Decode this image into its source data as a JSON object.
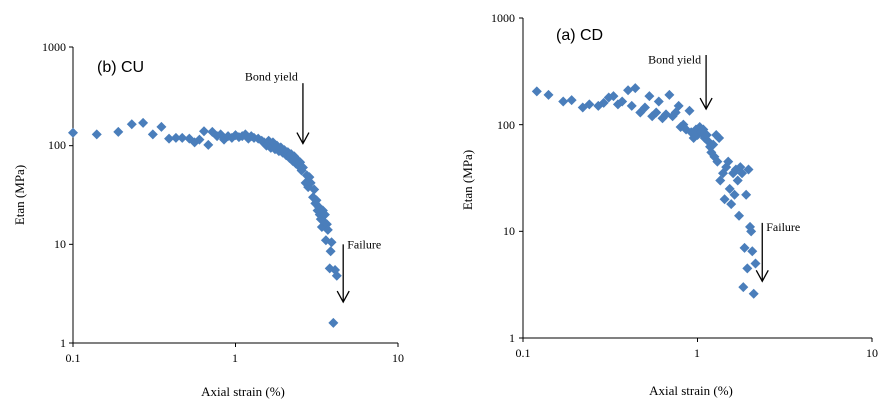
{
  "chart_data": [
    {
      "type": "scatter",
      "panel_label": "(b) CU",
      "xlabel": "Axial strain (%)",
      "ylabel": "Etan (MPa)",
      "x_scale": "log",
      "y_scale": "log",
      "xlim": [
        0.1,
        10
      ],
      "ylim": [
        1,
        1000
      ],
      "x_ticks": [
        "0.1",
        "1",
        "10"
      ],
      "y_ticks": [
        "1",
        "10",
        "100",
        "1000"
      ],
      "marker": "diamond",
      "color": "#4a7ebb",
      "annotations": [
        {
          "text": "Bond yield",
          "x": 2.6,
          "y_text": 500,
          "arrow_from": 430,
          "arrow_to": 105
        },
        {
          "text": "Failure",
          "x": 4.6,
          "y_text": 10,
          "arrow_from": 10,
          "arrow_to": 2.6
        }
      ],
      "points": [
        [
          0.1,
          135
        ],
        [
          0.14,
          130
        ],
        [
          0.19,
          138
        ],
        [
          0.23,
          165
        ],
        [
          0.27,
          170
        ],
        [
          0.31,
          130
        ],
        [
          0.35,
          155
        ],
        [
          0.39,
          118
        ],
        [
          0.43,
          120
        ],
        [
          0.47,
          120
        ],
        [
          0.52,
          118
        ],
        [
          0.56,
          108
        ],
        [
          0.6,
          115
        ],
        [
          0.64,
          140
        ],
        [
          0.68,
          102
        ],
        [
          0.72,
          138
        ],
        [
          0.77,
          125
        ],
        [
          0.81,
          130
        ],
        [
          0.85,
          115
        ],
        [
          0.9,
          125
        ],
        [
          0.95,
          120
        ],
        [
          1.0,
          128
        ],
        [
          1.05,
          122
        ],
        [
          1.1,
          125
        ],
        [
          1.15,
          130
        ],
        [
          1.2,
          118
        ],
        [
          1.25,
          125
        ],
        [
          1.3,
          120
        ],
        [
          1.38,
          118
        ],
        [
          1.45,
          112
        ],
        [
          1.5,
          108
        ],
        [
          1.55,
          100
        ],
        [
          1.6,
          112
        ],
        [
          1.65,
          95
        ],
        [
          1.7,
          108
        ],
        [
          1.75,
          92
        ],
        [
          1.8,
          100
        ],
        [
          1.85,
          88
        ],
        [
          1.9,
          96
        ],
        [
          1.95,
          85
        ],
        [
          2.0,
          90
        ],
        [
          2.05,
          80
        ],
        [
          2.1,
          86
        ],
        [
          2.15,
          75
        ],
        [
          2.2,
          82
        ],
        [
          2.25,
          70
        ],
        [
          2.3,
          78
        ],
        [
          2.35,
          66
        ],
        [
          2.4,
          72
        ],
        [
          2.45,
          62
        ],
        [
          2.5,
          68
        ],
        [
          2.55,
          56
        ],
        [
          2.6,
          60
        ],
        [
          2.7,
          42
        ],
        [
          2.75,
          50
        ],
        [
          2.8,
          38
        ],
        [
          2.85,
          48
        ],
        [
          2.9,
          42
        ],
        [
          3.0,
          30
        ],
        [
          3.05,
          36
        ],
        [
          3.1,
          26
        ],
        [
          3.15,
          28
        ],
        [
          3.2,
          22
        ],
        [
          3.25,
          24
        ],
        [
          3.3,
          20
        ],
        [
          3.35,
          18
        ],
        [
          3.4,
          15
        ],
        [
          3.45,
          22
        ],
        [
          3.5,
          17
        ],
        [
          3.55,
          20
        ],
        [
          3.6,
          11
        ],
        [
          3.65,
          16
        ],
        [
          3.7,
          14
        ],
        [
          3.8,
          5.7
        ],
        [
          3.85,
          8.5
        ],
        [
          3.9,
          10.5
        ],
        [
          4.0,
          1.6
        ],
        [
          4.1,
          5.5
        ],
        [
          4.2,
          4.8
        ]
      ]
    },
    {
      "type": "scatter",
      "panel_label": "(a) CD",
      "xlabel": "Axial strain (%)",
      "ylabel": "Etan (MPa)",
      "x_scale": "log",
      "y_scale": "log",
      "xlim": [
        0.1,
        10
      ],
      "ylim": [
        1,
        1000
      ],
      "x_ticks": [
        "0.1",
        "1",
        "10"
      ],
      "y_ticks": [
        "1",
        "10",
        "100",
        "1000"
      ],
      "marker": "diamond",
      "color": "#4a7ebb",
      "annotations": [
        {
          "text": "Bond yield",
          "x": 1.12,
          "y_text": 410,
          "arrow_from": 450,
          "arrow_to": 140
        },
        {
          "text": "Failure",
          "x": 2.35,
          "y_text": 11,
          "arrow_from": 12,
          "arrow_to": 3.4
        }
      ],
      "points": [
        [
          0.12,
          205
        ],
        [
          0.14,
          190
        ],
        [
          0.17,
          165
        ],
        [
          0.19,
          170
        ],
        [
          0.22,
          145
        ],
        [
          0.24,
          155
        ],
        [
          0.27,
          150
        ],
        [
          0.29,
          160
        ],
        [
          0.31,
          180
        ],
        [
          0.33,
          185
        ],
        [
          0.35,
          155
        ],
        [
          0.37,
          165
        ],
        [
          0.4,
          210
        ],
        [
          0.42,
          150
        ],
        [
          0.44,
          220
        ],
        [
          0.47,
          130
        ],
        [
          0.5,
          145
        ],
        [
          0.53,
          185
        ],
        [
          0.55,
          120
        ],
        [
          0.58,
          130
        ],
        [
          0.6,
          165
        ],
        [
          0.63,
          115
        ],
        [
          0.66,
          125
        ],
        [
          0.69,
          190
        ],
        [
          0.72,
          120
        ],
        [
          0.75,
          130
        ],
        [
          0.78,
          150
        ],
        [
          0.8,
          95
        ],
        [
          0.83,
          100
        ],
        [
          0.86,
          90
        ],
        [
          0.9,
          135
        ],
        [
          0.92,
          85
        ],
        [
          0.95,
          75
        ],
        [
          0.98,
          90
        ],
        [
          1.0,
          80
        ],
        [
          1.03,
          95
        ],
        [
          1.05,
          85
        ],
        [
          1.08,
          90
        ],
        [
          1.1,
          75
        ],
        [
          1.13,
          80
        ],
        [
          1.15,
          70
        ],
        [
          1.18,
          62
        ],
        [
          1.2,
          55
        ],
        [
          1.23,
          65
        ],
        [
          1.25,
          50
        ],
        [
          1.28,
          80
        ],
        [
          1.3,
          45
        ],
        [
          1.33,
          75
        ],
        [
          1.35,
          30
        ],
        [
          1.4,
          35
        ],
        [
          1.43,
          20
        ],
        [
          1.46,
          40
        ],
        [
          1.5,
          45
        ],
        [
          1.53,
          25
        ],
        [
          1.56,
          18
        ],
        [
          1.6,
          35
        ],
        [
          1.63,
          22
        ],
        [
          1.66,
          38
        ],
        [
          1.7,
          30
        ],
        [
          1.73,
          14
        ],
        [
          1.76,
          40
        ],
        [
          1.8,
          35
        ],
        [
          1.83,
          3.0
        ],
        [
          1.86,
          7
        ],
        [
          1.9,
          22
        ],
        [
          1.93,
          4.5
        ],
        [
          1.96,
          38
        ],
        [
          2.0,
          11
        ],
        [
          2.03,
          10
        ],
        [
          2.06,
          6.5
        ],
        [
          2.1,
          2.6
        ],
        [
          2.15,
          5
        ]
      ]
    }
  ]
}
